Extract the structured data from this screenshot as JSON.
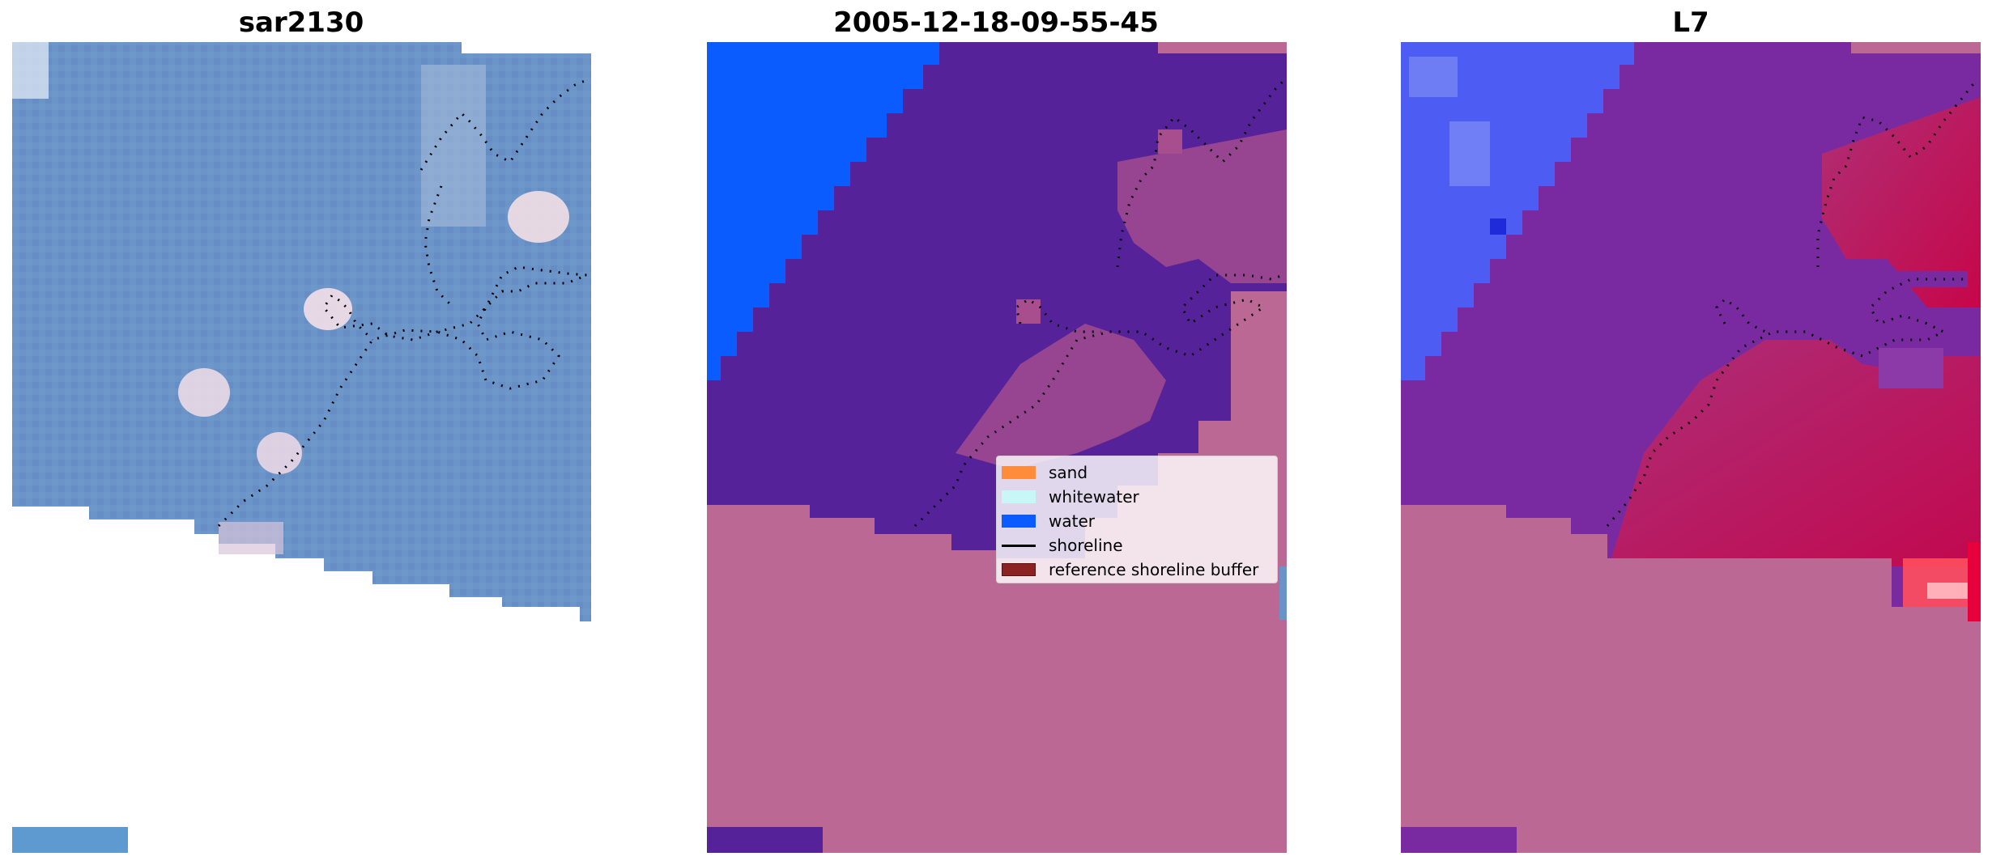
{
  "panels": [
    {
      "title": "sar2130"
    },
    {
      "title": "2005-12-18-09-55-45"
    },
    {
      "title": "L7"
    }
  ],
  "legend": {
    "items": [
      {
        "label": "sand",
        "color": "#ff8c3a",
        "kind": "patch"
      },
      {
        "label": "whitewater",
        "color": "#c8f7f7",
        "kind": "patch"
      },
      {
        "label": "water",
        "color": "#0a5cff",
        "kind": "patch"
      },
      {
        "label": "shoreline",
        "color": "#000000",
        "kind": "line"
      },
      {
        "label": "reference shoreline buffer",
        "color": "#8b2323",
        "kind": "patch"
      }
    ]
  },
  "colors": {
    "sar_water": "#6a93c8",
    "classified_water": "#0a5cff",
    "classified_other": "#55229a",
    "nodata_pink": "#bb6894",
    "ndwi_blue": "#4d5cf2",
    "ndwi_purple": "#7a2aa0",
    "ndwi_red": "#c8003c"
  }
}
